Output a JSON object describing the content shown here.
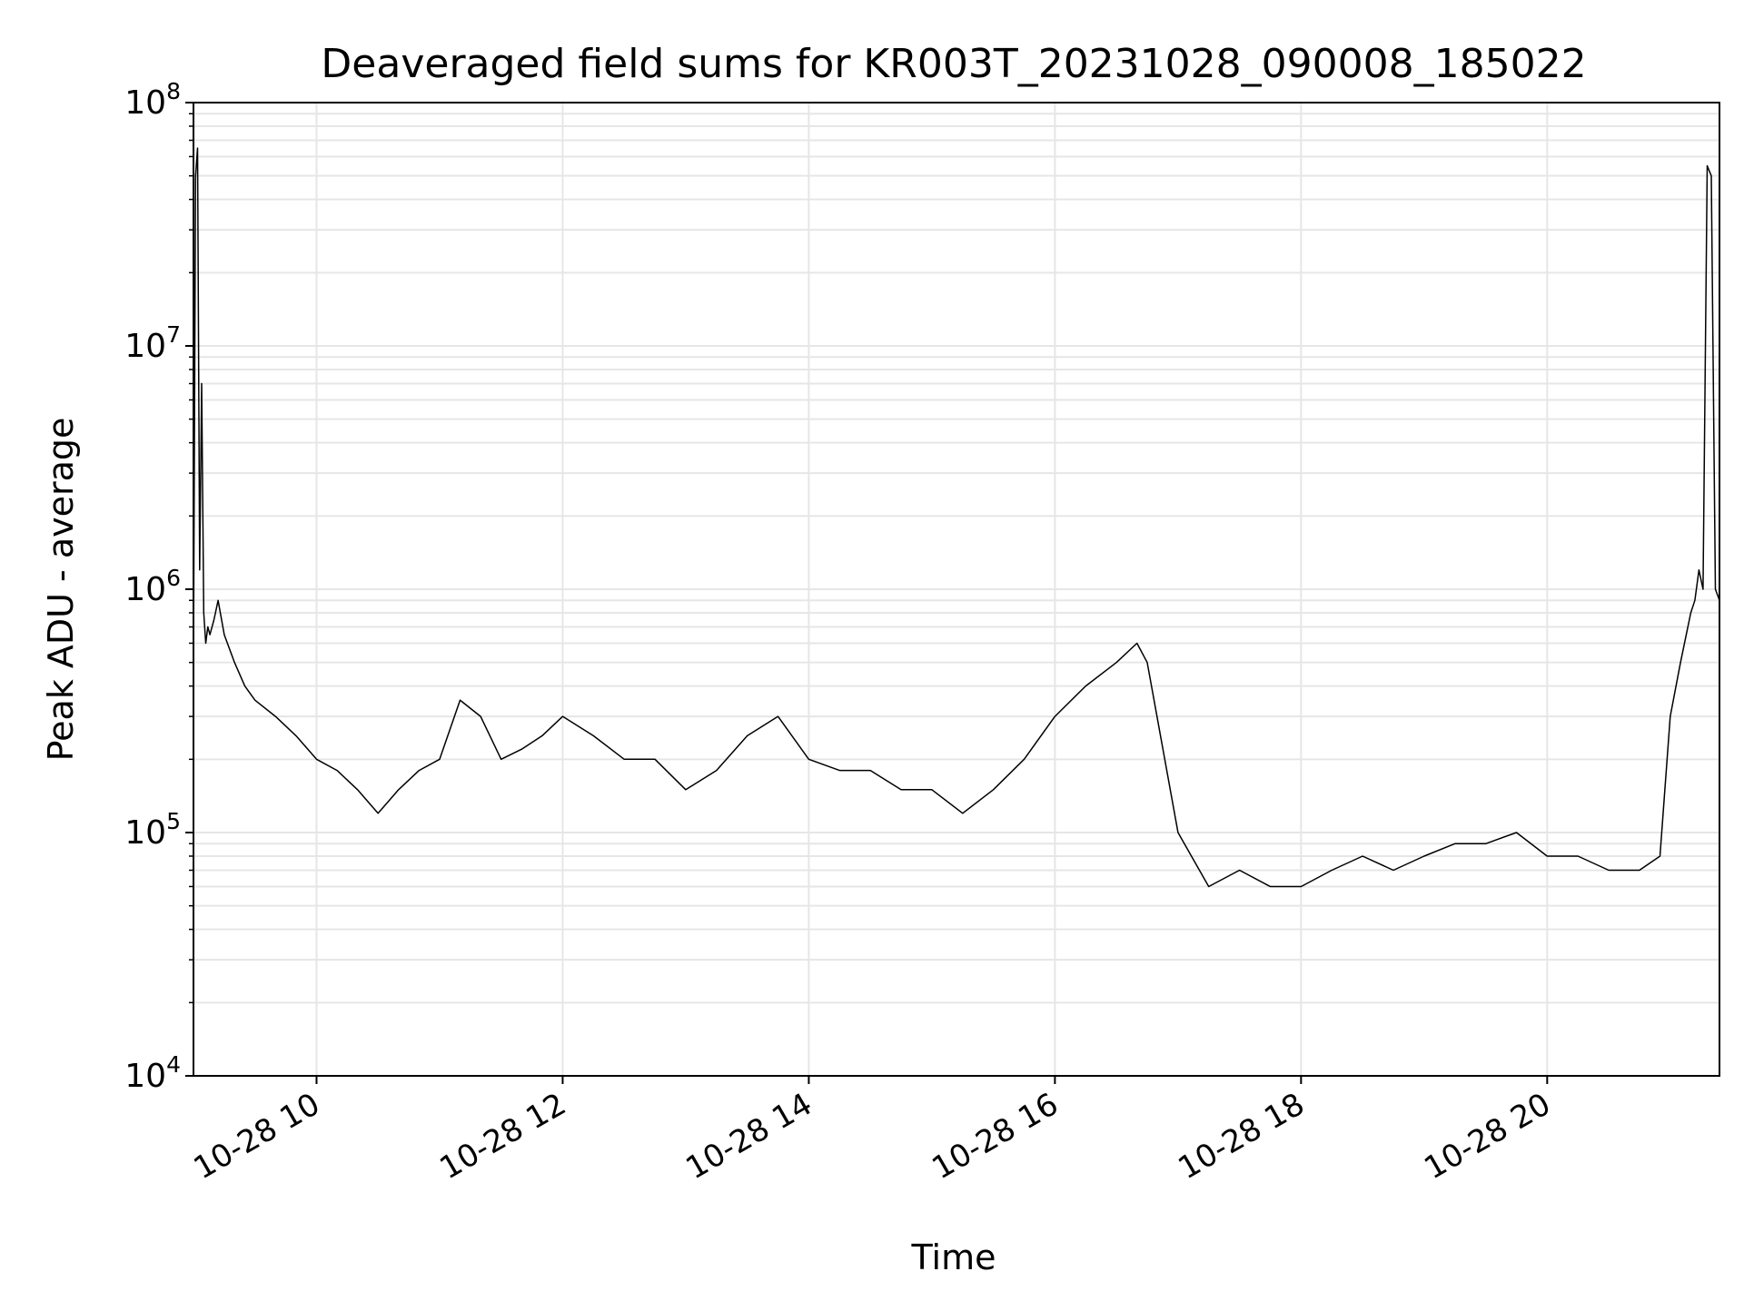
{
  "chart_data": {
    "type": "line",
    "title": "Deaveraged field sums for KR003T_20231028_090008_185022",
    "xlabel": "Time",
    "ylabel": "Peak ADU - average",
    "xlim": [
      "2023-10-28T09:00",
      "2023-10-28T21:24"
    ],
    "ylim": [
      10000,
      100000000
    ],
    "yscale": "log",
    "grid": true,
    "line_color": "#000000",
    "grid_color": "#e6e6e6",
    "x_ticks": [
      {
        "value": "2023-10-28T10:00",
        "label": "10-28 10"
      },
      {
        "value": "2023-10-28T12:00",
        "label": "10-28 12"
      },
      {
        "value": "2023-10-28T14:00",
        "label": "10-28 14"
      },
      {
        "value": "2023-10-28T16:00",
        "label": "10-28 16"
      },
      {
        "value": "2023-10-28T18:00",
        "label": "10-28 18"
      },
      {
        "value": "2023-10-28T20:00",
        "label": "10-28 20"
      }
    ],
    "y_ticks": [
      {
        "value": 10000,
        "base": "10",
        "exp": "4"
      },
      {
        "value": 100000,
        "base": "10",
        "exp": "5"
      },
      {
        "value": 1000000,
        "base": "10",
        "exp": "6"
      },
      {
        "value": 10000000,
        "base": "10",
        "exp": "7"
      },
      {
        "value": 100000000,
        "base": "10",
        "exp": "8"
      }
    ],
    "series": [
      {
        "x": [
          "2023-10-28T09:00",
          "2023-10-28T09:01",
          "2023-10-28T09:02",
          "2023-10-28T09:03",
          "2023-10-28T09:04",
          "2023-10-28T09:05",
          "2023-10-28T09:06",
          "2023-10-28T09:07",
          "2023-10-28T09:08",
          "2023-10-28T09:10",
          "2023-10-28T09:12",
          "2023-10-28T09:15",
          "2023-10-28T09:20",
          "2023-10-28T09:25",
          "2023-10-28T09:30",
          "2023-10-28T09:40",
          "2023-10-28T09:50",
          "2023-10-28T10:00",
          "2023-10-28T10:10",
          "2023-10-28T10:20",
          "2023-10-28T10:30",
          "2023-10-28T10:40",
          "2023-10-28T10:50",
          "2023-10-28T11:00",
          "2023-10-28T11:10",
          "2023-10-28T11:20",
          "2023-10-28T11:30",
          "2023-10-28T11:40",
          "2023-10-28T11:50",
          "2023-10-28T12:00",
          "2023-10-28T12:15",
          "2023-10-28T12:30",
          "2023-10-28T12:45",
          "2023-10-28T13:00",
          "2023-10-28T13:15",
          "2023-10-28T13:30",
          "2023-10-28T13:45",
          "2023-10-28T14:00",
          "2023-10-28T14:15",
          "2023-10-28T14:30",
          "2023-10-28T14:45",
          "2023-10-28T15:00",
          "2023-10-28T15:15",
          "2023-10-28T15:30",
          "2023-10-28T15:45",
          "2023-10-28T16:00",
          "2023-10-28T16:15",
          "2023-10-28T16:30",
          "2023-10-28T16:40",
          "2023-10-28T16:45",
          "2023-10-28T17:00",
          "2023-10-28T17:15",
          "2023-10-28T17:30",
          "2023-10-28T17:45",
          "2023-10-28T18:00",
          "2023-10-28T18:15",
          "2023-10-28T18:30",
          "2023-10-28T18:45",
          "2023-10-28T19:00",
          "2023-10-28T19:15",
          "2023-10-28T19:30",
          "2023-10-28T19:45",
          "2023-10-28T20:00",
          "2023-10-28T20:15",
          "2023-10-28T20:30",
          "2023-10-28T20:45",
          "2023-10-28T20:55",
          "2023-10-28T21:00",
          "2023-10-28T21:05",
          "2023-10-28T21:10",
          "2023-10-28T21:12",
          "2023-10-28T21:14",
          "2023-10-28T21:16",
          "2023-10-28T21:18",
          "2023-10-28T21:20",
          "2023-10-28T21:22",
          "2023-10-28T21:24"
        ],
        "y": [
          500000,
          50000000,
          65000000,
          1200000,
          7000000,
          800000,
          600000,
          700000,
          650000,
          750000,
          900000,
          650000,
          500000,
          400000,
          350000,
          300000,
          250000,
          200000,
          180000,
          150000,
          120000,
          150000,
          180000,
          200000,
          350000,
          300000,
          200000,
          220000,
          250000,
          300000,
          250000,
          200000,
          200000,
          150000,
          180000,
          250000,
          300000,
          200000,
          180000,
          180000,
          150000,
          150000,
          120000,
          150000,
          200000,
          300000,
          400000,
          500000,
          600000,
          500000,
          100000,
          60000,
          70000,
          60000,
          60000,
          70000,
          80000,
          70000,
          80000,
          90000,
          90000,
          100000,
          80000,
          80000,
          70000,
          70000,
          80000,
          300000,
          500000,
          800000,
          900000,
          1200000,
          1000000,
          55000000,
          50000000,
          1000000,
          900000
        ]
      }
    ]
  }
}
